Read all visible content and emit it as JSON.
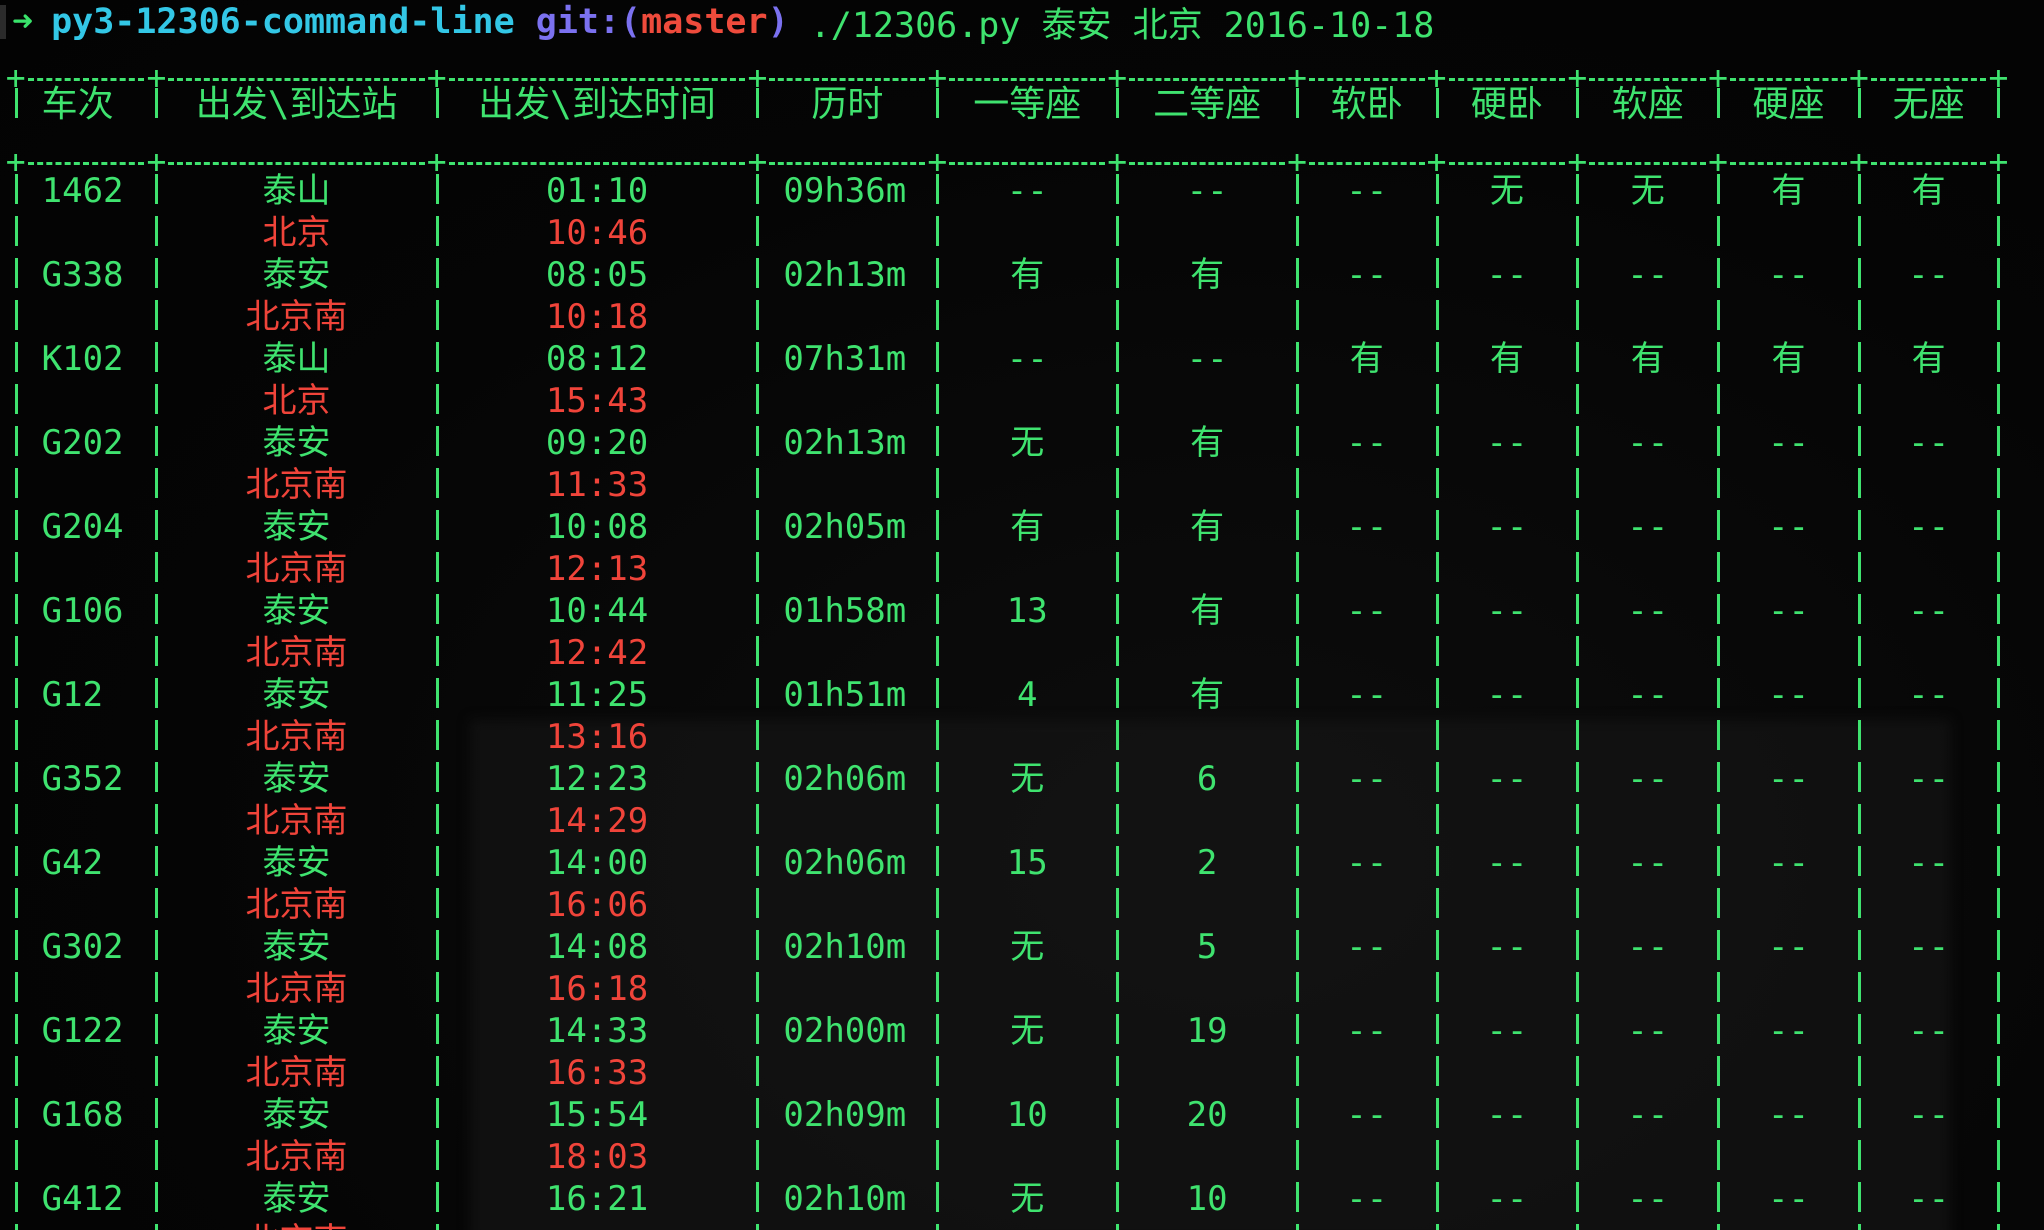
{
  "prompt": {
    "arrow": "➜",
    "directory": "py3-12306-command-line",
    "git_label": "git:",
    "paren_open": "(",
    "branch": "master",
    "paren_close": ")",
    "command": "./12306.py 泰安 北京 2016-10-18"
  },
  "table": {
    "headers": [
      "车次",
      "出发\\到达站",
      "出发\\到达时间",
      "历时",
      "一等座",
      "二等座",
      "软卧",
      "硬卧",
      "软座",
      "硬座",
      "无座"
    ],
    "rows": [
      {
        "train": "1462",
        "from": "泰山",
        "to": "北京",
        "depart": "01:10",
        "arrive": "10:46",
        "duration": "09h36m",
        "first": "--",
        "second": "--",
        "soft_sleeper": "--",
        "hard_sleeper": "无",
        "soft_seat": "无",
        "hard_seat": "有",
        "no_seat": "有"
      },
      {
        "train": "G338",
        "from": "泰安",
        "to": "北京南",
        "depart": "08:05",
        "arrive": "10:18",
        "duration": "02h13m",
        "first": "有",
        "second": "有",
        "soft_sleeper": "--",
        "hard_sleeper": "--",
        "soft_seat": "--",
        "hard_seat": "--",
        "no_seat": "--"
      },
      {
        "train": "K102",
        "from": "泰山",
        "to": "北京",
        "depart": "08:12",
        "arrive": "15:43",
        "duration": "07h31m",
        "first": "--",
        "second": "--",
        "soft_sleeper": "有",
        "hard_sleeper": "有",
        "soft_seat": "有",
        "hard_seat": "有",
        "no_seat": "有"
      },
      {
        "train": "G202",
        "from": "泰安",
        "to": "北京南",
        "depart": "09:20",
        "arrive": "11:33",
        "duration": "02h13m",
        "first": "无",
        "second": "有",
        "soft_sleeper": "--",
        "hard_sleeper": "--",
        "soft_seat": "--",
        "hard_seat": "--",
        "no_seat": "--"
      },
      {
        "train": "G204",
        "from": "泰安",
        "to": "北京南",
        "depart": "10:08",
        "arrive": "12:13",
        "duration": "02h05m",
        "first": "有",
        "second": "有",
        "soft_sleeper": "--",
        "hard_sleeper": "--",
        "soft_seat": "--",
        "hard_seat": "--",
        "no_seat": "--"
      },
      {
        "train": "G106",
        "from": "泰安",
        "to": "北京南",
        "depart": "10:44",
        "arrive": "12:42",
        "duration": "01h58m",
        "first": "13",
        "second": "有",
        "soft_sleeper": "--",
        "hard_sleeper": "--",
        "soft_seat": "--",
        "hard_seat": "--",
        "no_seat": "--"
      },
      {
        "train": "G12",
        "from": "泰安",
        "to": "北京南",
        "depart": "11:25",
        "arrive": "13:16",
        "duration": "01h51m",
        "first": "4",
        "second": "有",
        "soft_sleeper": "--",
        "hard_sleeper": "--",
        "soft_seat": "--",
        "hard_seat": "--",
        "no_seat": "--"
      },
      {
        "train": "G352",
        "from": "泰安",
        "to": "北京南",
        "depart": "12:23",
        "arrive": "14:29",
        "duration": "02h06m",
        "first": "无",
        "second": "6",
        "soft_sleeper": "--",
        "hard_sleeper": "--",
        "soft_seat": "--",
        "hard_seat": "--",
        "no_seat": "--"
      },
      {
        "train": "G42",
        "from": "泰安",
        "to": "北京南",
        "depart": "14:00",
        "arrive": "16:06",
        "duration": "02h06m",
        "first": "15",
        "second": "2",
        "soft_sleeper": "--",
        "hard_sleeper": "--",
        "soft_seat": "--",
        "hard_seat": "--",
        "no_seat": "--"
      },
      {
        "train": "G302",
        "from": "泰安",
        "to": "北京南",
        "depart": "14:08",
        "arrive": "16:18",
        "duration": "02h10m",
        "first": "无",
        "second": "5",
        "soft_sleeper": "--",
        "hard_sleeper": "--",
        "soft_seat": "--",
        "hard_seat": "--",
        "no_seat": "--"
      },
      {
        "train": "G122",
        "from": "泰安",
        "to": "北京南",
        "depart": "14:33",
        "arrive": "16:33",
        "duration": "02h00m",
        "first": "无",
        "second": "19",
        "soft_sleeper": "--",
        "hard_sleeper": "--",
        "soft_seat": "--",
        "hard_seat": "--",
        "no_seat": "--"
      },
      {
        "train": "G168",
        "from": "泰安",
        "to": "北京南",
        "depart": "15:54",
        "arrive": "18:03",
        "duration": "02h09m",
        "first": "10",
        "second": "20",
        "soft_sleeper": "--",
        "hard_sleeper": "--",
        "soft_seat": "--",
        "hard_seat": "--",
        "no_seat": "--"
      },
      {
        "train": "G412",
        "from": "泰安",
        "to": "北京南",
        "depart": "16:21",
        "arrive": "",
        "duration": "02h10m",
        "first": "无",
        "second": "10",
        "soft_sleeper": "--",
        "hard_sleeper": "--",
        "soft_seat": "--",
        "hard_seat": "--",
        "no_seat": "--"
      }
    ]
  },
  "colors": {
    "background": "#050505",
    "green": "#3fe36f",
    "red": "#f0443a",
    "cyan": "#33c7e6",
    "purple": "#7b71f0"
  }
}
